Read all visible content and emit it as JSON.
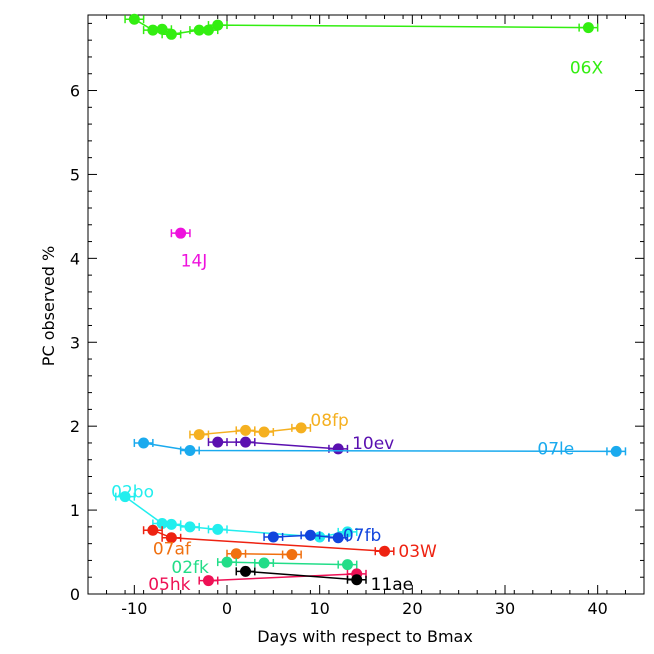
{
  "chart_data": {
    "type": "scatter",
    "title": "",
    "xlabel": "Days with respect to Bmax",
    "ylabel": "PC observed %",
    "xlim": [
      -15,
      45
    ],
    "ylim": [
      0,
      6.9
    ],
    "x_ticks": [
      -10,
      0,
      10,
      20,
      30,
      40
    ],
    "y_ticks": [
      0,
      1,
      2,
      3,
      4,
      5,
      6
    ],
    "grid": false,
    "series": [
      {
        "name": "06X",
        "color": "#33ee11",
        "points": [
          {
            "x": -10,
            "y": 6.85
          },
          {
            "x": -8,
            "y": 6.72
          },
          {
            "x": -7,
            "y": 6.73
          },
          {
            "x": -6,
            "y": 6.67
          },
          {
            "x": -3,
            "y": 6.72
          },
          {
            "x": -2,
            "y": 6.72
          },
          {
            "x": -1,
            "y": 6.78
          },
          {
            "x": 39,
            "y": 6.75
          }
        ]
      },
      {
        "name": "14J",
        "color": "#ee11dd",
        "points": [
          {
            "x": -5,
            "y": 4.3
          }
        ]
      },
      {
        "name": "08fp",
        "color": "#f5b020",
        "points": [
          {
            "x": -3,
            "y": 1.9
          },
          {
            "x": 2,
            "y": 1.95
          },
          {
            "x": 4,
            "y": 1.93
          },
          {
            "x": 8,
            "y": 1.98
          }
        ]
      },
      {
        "name": "10ev",
        "color": "#5a10b0",
        "points": [
          {
            "x": -1,
            "y": 1.81
          },
          {
            "x": 2,
            "y": 1.81
          },
          {
            "x": 12,
            "y": 1.73
          }
        ]
      },
      {
        "name": "07le",
        "color": "#1aaaee",
        "points": [
          {
            "x": -9,
            "y": 1.8
          },
          {
            "x": -4,
            "y": 1.71
          },
          {
            "x": 42,
            "y": 1.7
          }
        ]
      },
      {
        "name": "02bo",
        "color": "#22eeee",
        "points": [
          {
            "x": -11,
            "y": 1.16
          },
          {
            "x": -7,
            "y": 0.84
          },
          {
            "x": -6,
            "y": 0.83
          },
          {
            "x": -4,
            "y": 0.8
          },
          {
            "x": -1,
            "y": 0.77
          },
          {
            "x": 10,
            "y": 0.68
          },
          {
            "x": 13,
            "y": 0.74
          }
        ]
      },
      {
        "name": "07fb",
        "color": "#1144dd",
        "points": [
          {
            "x": 5,
            "y": 0.68
          },
          {
            "x": 9,
            "y": 0.7
          },
          {
            "x": 12,
            "y": 0.67
          }
        ]
      },
      {
        "name": "03W",
        "color": "#ee2211",
        "points": [
          {
            "x": -8,
            "y": 0.76
          },
          {
            "x": -6,
            "y": 0.67
          },
          {
            "x": 17,
            "y": 0.51
          }
        ]
      },
      {
        "name": "07af",
        "color": "#f07010",
        "points": [
          {
            "x": 1,
            "y": 0.48
          },
          {
            "x": 7,
            "y": 0.47
          }
        ]
      },
      {
        "name": "02fk",
        "color": "#22dd88",
        "points": [
          {
            "x": 0,
            "y": 0.38
          },
          {
            "x": 4,
            "y": 0.37
          },
          {
            "x": 13,
            "y": 0.35
          }
        ]
      },
      {
        "name": "05hk",
        "color": "#ee1155",
        "points": [
          {
            "x": -2,
            "y": 0.16
          },
          {
            "x": 14,
            "y": 0.24
          }
        ]
      },
      {
        "name": "11ae",
        "color": "#000000",
        "points": [
          {
            "x": 2,
            "y": 0.27
          },
          {
            "x": 14,
            "y": 0.17
          }
        ]
      }
    ],
    "labels": [
      {
        "text": "06X",
        "x": 37,
        "y": 6.2,
        "color": "#33ee11"
      },
      {
        "text": "14J",
        "x": -5,
        "y": 3.9,
        "color": "#ee11dd"
      },
      {
        "text": "08fp",
        "x": 9,
        "y": 2.0,
        "color": "#f5b020"
      },
      {
        "text": "10ev",
        "x": 13.5,
        "y": 1.73,
        "color": "#5a10b0"
      },
      {
        "text": "07le",
        "x": 33.5,
        "y": 1.66,
        "color": "#1aaaee"
      },
      {
        "text": "02bo",
        "x": -12.5,
        "y": 1.15,
        "color": "#22eeee"
      },
      {
        "text": "07fb",
        "x": 12.5,
        "y": 0.63,
        "color": "#1144dd"
      },
      {
        "text": "03W",
        "x": 18.5,
        "y": 0.44,
        "color": "#ee2211"
      },
      {
        "text": "07af",
        "x": -8,
        "y": 0.47,
        "color": "#f07010"
      },
      {
        "text": "02fk",
        "x": -6,
        "y": 0.25,
        "color": "#22dd88"
      },
      {
        "text": "05hk",
        "x": -8.5,
        "y": 0.05,
        "color": "#ee1155"
      },
      {
        "text": "11ae",
        "x": 15.5,
        "y": 0.05,
        "color": "#000000"
      }
    ]
  }
}
